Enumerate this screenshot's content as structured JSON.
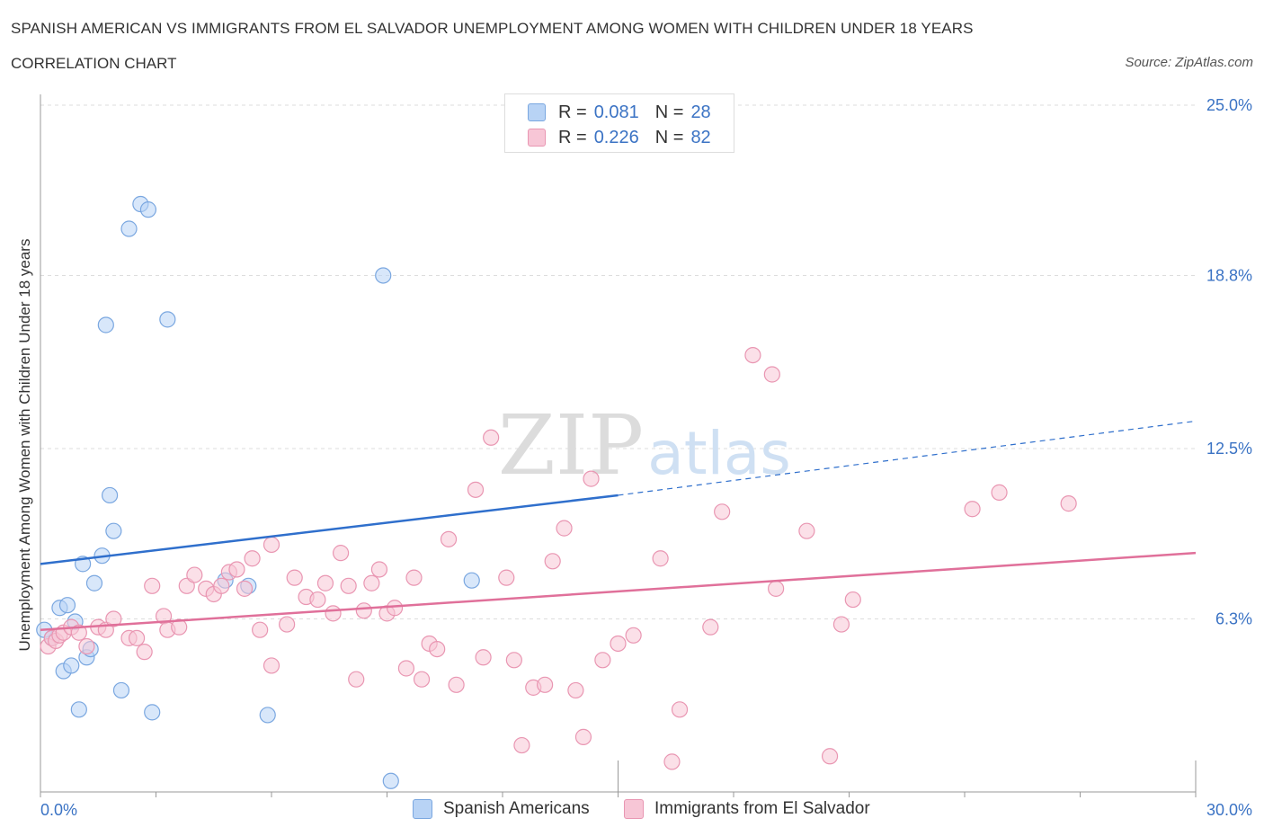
{
  "title": "SPANISH AMERICAN VS IMMIGRANTS FROM EL SALVADOR UNEMPLOYMENT AMONG WOMEN WITH CHILDREN UNDER 18 YEARS",
  "subtitle": "CORRELATION CHART",
  "source": "Source: ZipAtlas.com",
  "watermark": {
    "zip": "ZIP",
    "atlas": "atlas"
  },
  "legend": {
    "rows": [
      {
        "r_label": "R =",
        "r_value": "0.081",
        "n_label": "N =",
        "n_value": "28"
      },
      {
        "r_label": "R =",
        "r_value": "0.226",
        "n_label": "N =",
        "n_value": "82"
      }
    ]
  },
  "colors": {
    "blue_fill": "#b8d3f5",
    "blue_stroke": "#7aa7e0",
    "blue_line": "#2f6fcc",
    "pink_fill": "#f7c6d6",
    "pink_stroke": "#e996b2",
    "pink_line": "#e0709a",
    "axis_text": "#3b73c4",
    "grid": "#dddddd"
  },
  "chart_data": {
    "type": "scatter",
    "title": "SPANISH AMERICAN VS IMMIGRANTS FROM EL SALVADOR UNEMPLOYMENT AMONG WOMEN WITH CHILDREN UNDER 18 YEARS",
    "xlabel": "",
    "ylabel": "Unemployment Among Women with Children Under 18 years",
    "xlim": [
      0,
      30
    ],
    "ylim": [
      0,
      25
    ],
    "x_tick_labels": [
      "0.0%",
      "30.0%"
    ],
    "y_ticks": [
      6.3,
      12.5,
      18.8,
      25.0
    ],
    "y_tick_labels": [
      "6.3%",
      "12.5%",
      "18.8%",
      "25.0%"
    ],
    "grid": true,
    "series": [
      {
        "name": "Spanish Americans",
        "r": 0.081,
        "n": 28,
        "trend": {
          "x0": 0,
          "y0": 8.3,
          "x1": 15,
          "y1": 10.8,
          "dashed_to_x": 30,
          "dashed_to_y": 13.5
        },
        "points": [
          [
            0.1,
            5.9
          ],
          [
            0.3,
            5.6
          ],
          [
            0.5,
            6.7
          ],
          [
            0.6,
            4.4
          ],
          [
            0.7,
            6.8
          ],
          [
            0.8,
            4.6
          ],
          [
            0.9,
            6.2
          ],
          [
            1.0,
            3.0
          ],
          [
            1.1,
            8.3
          ],
          [
            1.2,
            4.9
          ],
          [
            1.3,
            5.2
          ],
          [
            1.4,
            7.6
          ],
          [
            1.6,
            8.6
          ],
          [
            1.7,
            17.0
          ],
          [
            1.8,
            10.8
          ],
          [
            1.9,
            9.5
          ],
          [
            2.1,
            3.7
          ],
          [
            2.3,
            20.5
          ],
          [
            2.6,
            21.4
          ],
          [
            2.8,
            21.2
          ],
          [
            2.9,
            2.9
          ],
          [
            3.3,
            17.2
          ],
          [
            4.8,
            7.7
          ],
          [
            5.4,
            7.5
          ],
          [
            5.9,
            2.8
          ],
          [
            8.9,
            18.8
          ],
          [
            9.1,
            0.4
          ],
          [
            11.2,
            7.7
          ]
        ]
      },
      {
        "name": "Immigrants from El Salvador",
        "r": 0.226,
        "n": 82,
        "trend": {
          "x0": 0,
          "y0": 5.9,
          "x1": 30,
          "y1": 8.7
        },
        "points": [
          [
            0.2,
            5.3
          ],
          [
            0.3,
            5.6
          ],
          [
            0.4,
            5.5
          ],
          [
            0.5,
            5.7
          ],
          [
            0.6,
            5.8
          ],
          [
            0.8,
            6.0
          ],
          [
            1.0,
            5.8
          ],
          [
            1.2,
            5.3
          ],
          [
            1.5,
            6.0
          ],
          [
            1.7,
            5.9
          ],
          [
            1.9,
            6.3
          ],
          [
            2.3,
            5.6
          ],
          [
            2.5,
            5.6
          ],
          [
            2.7,
            5.1
          ],
          [
            2.9,
            7.5
          ],
          [
            3.2,
            6.4
          ],
          [
            3.3,
            5.9
          ],
          [
            3.6,
            6.0
          ],
          [
            3.8,
            7.5
          ],
          [
            4.0,
            7.9
          ],
          [
            4.3,
            7.4
          ],
          [
            4.5,
            7.2
          ],
          [
            4.7,
            7.5
          ],
          [
            4.9,
            8.0
          ],
          [
            5.1,
            8.1
          ],
          [
            5.3,
            7.4
          ],
          [
            5.5,
            8.5
          ],
          [
            5.7,
            5.9
          ],
          [
            6.0,
            4.6
          ],
          [
            6.0,
            9.0
          ],
          [
            6.4,
            6.1
          ],
          [
            6.6,
            7.8
          ],
          [
            6.9,
            7.1
          ],
          [
            7.2,
            7.0
          ],
          [
            7.4,
            7.6
          ],
          [
            7.6,
            6.5
          ],
          [
            7.8,
            8.7
          ],
          [
            8.0,
            7.5
          ],
          [
            8.2,
            4.1
          ],
          [
            8.4,
            6.6
          ],
          [
            8.6,
            7.6
          ],
          [
            8.8,
            8.1
          ],
          [
            9.0,
            6.5
          ],
          [
            9.2,
            6.7
          ],
          [
            9.5,
            4.5
          ],
          [
            9.7,
            7.8
          ],
          [
            9.9,
            4.1
          ],
          [
            10.1,
            5.4
          ],
          [
            10.3,
            5.2
          ],
          [
            10.6,
            9.2
          ],
          [
            10.8,
            3.9
          ],
          [
            11.3,
            11.0
          ],
          [
            11.5,
            4.9
          ],
          [
            11.7,
            12.9
          ],
          [
            12.1,
            7.8
          ],
          [
            12.3,
            4.8
          ],
          [
            12.5,
            1.7
          ],
          [
            12.8,
            3.8
          ],
          [
            13.1,
            3.9
          ],
          [
            13.3,
            8.4
          ],
          [
            13.6,
            9.6
          ],
          [
            13.9,
            3.7
          ],
          [
            14.1,
            2.0
          ],
          [
            14.3,
            11.4
          ],
          [
            14.6,
            4.8
          ],
          [
            15.0,
            5.4
          ],
          [
            15.4,
            5.7
          ],
          [
            16.1,
            8.5
          ],
          [
            16.4,
            1.1
          ],
          [
            16.6,
            3.0
          ],
          [
            17.4,
            6.0
          ],
          [
            17.7,
            10.2
          ],
          [
            18.5,
            15.9
          ],
          [
            19.0,
            15.2
          ],
          [
            19.1,
            7.4
          ],
          [
            19.9,
            9.5
          ],
          [
            20.5,
            1.3
          ],
          [
            20.8,
            6.1
          ],
          [
            21.1,
            7.0
          ],
          [
            24.2,
            10.3
          ],
          [
            24.9,
            10.9
          ],
          [
            26.7,
            10.5
          ]
        ]
      }
    ]
  },
  "bottom_legend": [
    {
      "label": "Spanish Americans"
    },
    {
      "label": "Immigrants from El Salvador"
    }
  ]
}
